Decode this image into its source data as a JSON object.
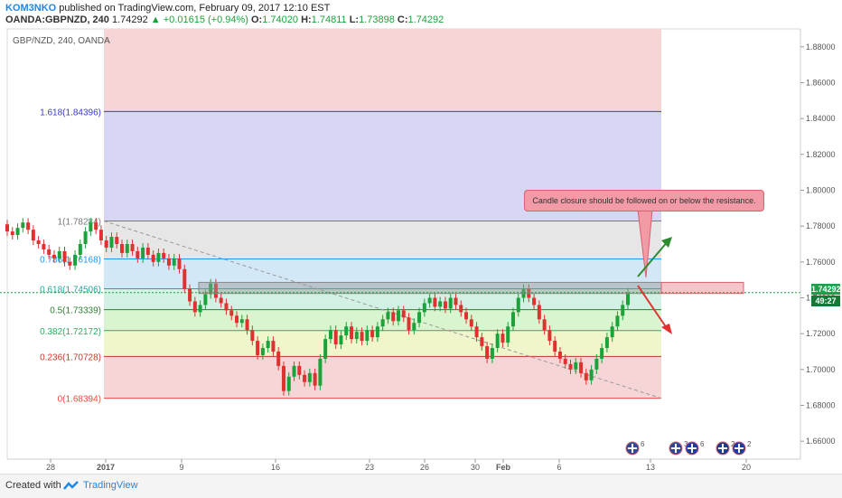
{
  "header": {
    "author": "KOM3NKO",
    "published": "published on TradingView.com, February 09, 2017 12:10 EST",
    "symbol": "OANDA:GBPNZD, 240",
    "last": "1.74292",
    "change_arrow": "▲",
    "change": "+0.01615 (+0.94%)",
    "o_label": "O:",
    "o_val": "1.74020",
    "h_label": "H:",
    "h_val": "1.74811",
    "l_label": "L:",
    "l_val": "1.73898",
    "c_label": "C:",
    "c_val": "1.74292"
  },
  "footer": {
    "created_with": "Created with",
    "brand": "TradingView"
  },
  "annotation": "Candle closure should be followed on or below the resistance.",
  "price_badge": {
    "price": "1.74292",
    "countdown": "49:27"
  },
  "colors": {
    "up": "#1ba23a",
    "down": "#e03131",
    "accent": "#1e88e5",
    "fib_0": "#e74c3c",
    "fib_0236": "#c0392b",
    "fib_0382": "#27ae60",
    "fib_05": "#2e7d32",
    "fib_0618": "#26a69a",
    "fib_0786": "#2196f3",
    "fib_1": "#777777",
    "fib_1618": "#3b3bc7"
  },
  "icons": [
    "tradingview-logo-icon",
    "uk-flag-icon",
    "eu-flag-icon",
    "au-flag-icon"
  ],
  "events": [
    {
      "count": "6",
      "flag": "uk-flag-icon"
    },
    {
      "count": "3",
      "flag": "uk-flag-icon"
    },
    {
      "count": "6",
      "flag": "eu-flag-icon"
    },
    {
      "count": "2",
      "flag": "au-flag-icon"
    },
    {
      "count": "2",
      "flag": "eu-flag-icon"
    }
  ],
  "chart_data": {
    "type": "line",
    "title": "GBP/NZD, 240, OANDA",
    "xlabel": "",
    "ylabel": "",
    "ylim": [
      1.65,
      1.89
    ],
    "y_ticks": [
      "1.66000",
      "1.68000",
      "1.70000",
      "1.72000",
      "1.74000",
      "1.76000",
      "1.78000",
      "1.80000",
      "1.82000",
      "1.84000",
      "1.86000",
      "1.88000"
    ],
    "x_ticks": [
      "28",
      "2017",
      "9",
      "16",
      "23",
      "26",
      "30",
      "Feb",
      "6",
      "13",
      "20"
    ],
    "fib_levels": [
      {
        "label": "1.618(1.84396)",
        "value": 1.84396
      },
      {
        "label": "1(1.78284)",
        "value": 1.78284
      },
      {
        "label": "0.786(1.76168)",
        "value": 1.76168
      },
      {
        "label": "0.618(1.74506)",
        "value": 1.74506
      },
      {
        "label": "0.5(1.73339)",
        "value": 1.73339
      },
      {
        "label": "0.382(1.72172)",
        "value": 1.72172
      },
      {
        "label": "0.236(1.70728)",
        "value": 1.70728
      },
      {
        "label": "0(1.68394)",
        "value": 1.68394
      }
    ],
    "resistance_zone": [
      1.74292,
      1.74811
    ],
    "last_price": 1.74292,
    "price_path": [
      [
        1.781,
        1.777
      ],
      [
        1.777,
        1.775
      ],
      [
        1.775,
        1.779
      ],
      [
        1.779,
        1.782
      ],
      [
        1.782,
        1.778
      ],
      [
        1.778,
        1.772
      ],
      [
        1.772,
        1.77
      ],
      [
        1.77,
        1.767
      ],
      [
        1.767,
        1.764
      ],
      [
        1.764,
        1.762
      ],
      [
        1.762,
        1.766
      ],
      [
        1.766,
        1.76
      ],
      [
        1.76,
        1.758
      ],
      [
        1.758,
        1.764
      ],
      [
        1.764,
        1.77
      ],
      [
        1.77,
        1.777
      ],
      [
        1.777,
        1.782
      ],
      [
        1.782,
        1.778
      ],
      [
        1.778,
        1.772
      ],
      [
        1.772,
        1.768
      ],
      [
        1.768,
        1.774
      ],
      [
        1.774,
        1.77
      ],
      [
        1.77,
        1.765
      ],
      [
        1.765,
        1.77
      ],
      [
        1.77,
        1.766
      ],
      [
        1.766,
        1.762
      ],
      [
        1.762,
        1.768
      ],
      [
        1.768,
        1.764
      ],
      [
        1.764,
        1.76
      ],
      [
        1.76,
        1.765
      ],
      [
        1.765,
        1.762
      ],
      [
        1.762,
        1.758
      ],
      [
        1.758,
        1.762
      ],
      [
        1.762,
        1.756
      ],
      [
        1.756,
        1.745
      ],
      [
        1.745,
        1.738
      ],
      [
        1.738,
        1.732
      ],
      [
        1.732,
        1.736
      ],
      [
        1.736,
        1.742
      ],
      [
        1.742,
        1.748
      ],
      [
        1.748,
        1.74
      ],
      [
        1.74,
        1.737
      ],
      [
        1.737,
        1.733
      ],
      [
        1.733,
        1.73
      ],
      [
        1.73,
        1.726
      ],
      [
        1.726,
        1.728
      ],
      [
        1.728,
        1.722
      ],
      [
        1.722,
        1.716
      ],
      [
        1.716,
        1.708
      ],
      [
        1.708,
        1.712
      ],
      [
        1.712,
        1.716
      ],
      [
        1.716,
        1.71
      ],
      [
        1.71,
        1.702
      ],
      [
        1.702,
        1.688
      ],
      [
        1.688,
        1.696
      ],
      [
        1.696,
        1.702
      ],
      [
        1.702,
        1.697
      ],
      [
        1.697,
        1.693
      ],
      [
        1.693,
        1.698
      ],
      [
        1.698,
        1.691
      ],
      [
        1.691,
        1.706
      ],
      [
        1.706,
        1.717
      ],
      [
        1.717,
        1.722
      ],
      [
        1.722,
        1.714
      ],
      [
        1.714,
        1.719
      ],
      [
        1.719,
        1.724
      ],
      [
        1.724,
        1.717
      ],
      [
        1.717,
        1.721
      ],
      [
        1.721,
        1.716
      ],
      [
        1.716,
        1.722
      ],
      [
        1.722,
        1.718
      ],
      [
        1.718,
        1.724
      ],
      [
        1.724,
        1.728
      ],
      [
        1.728,
        1.732
      ],
      [
        1.732,
        1.727
      ],
      [
        1.727,
        1.733
      ],
      [
        1.733,
        1.729
      ],
      [
        1.729,
        1.722
      ],
      [
        1.722,
        1.726
      ],
      [
        1.726,
        1.732
      ],
      [
        1.732,
        1.737
      ],
      [
        1.737,
        1.74
      ],
      [
        1.74,
        1.735
      ],
      [
        1.735,
        1.738
      ],
      [
        1.738,
        1.734
      ],
      [
        1.734,
        1.74
      ],
      [
        1.74,
        1.736
      ],
      [
        1.736,
        1.732
      ],
      [
        1.732,
        1.728
      ],
      [
        1.728,
        1.724
      ],
      [
        1.724,
        1.718
      ],
      [
        1.718,
        1.713
      ],
      [
        1.713,
        1.706
      ],
      [
        1.706,
        1.712
      ],
      [
        1.712,
        1.72
      ],
      [
        1.72,
        1.715
      ],
      [
        1.715,
        1.724
      ],
      [
        1.724,
        1.732
      ],
      [
        1.732,
        1.74
      ],
      [
        1.74,
        1.745
      ],
      [
        1.745,
        1.74
      ],
      [
        1.74,
        1.736
      ],
      [
        1.736,
        1.728
      ],
      [
        1.728,
        1.722
      ],
      [
        1.722,
        1.716
      ],
      [
        1.716,
        1.71
      ],
      [
        1.71,
        1.706
      ],
      [
        1.706,
        1.703
      ],
      [
        1.703,
        1.7
      ],
      [
        1.7,
        1.704
      ],
      [
        1.704,
        1.698
      ],
      [
        1.698,
        1.694
      ],
      [
        1.694,
        1.7
      ],
      [
        1.7,
        1.706
      ],
      [
        1.706,
        1.712
      ],
      [
        1.712,
        1.718
      ],
      [
        1.718,
        1.724
      ],
      [
        1.724,
        1.73
      ],
      [
        1.73,
        1.736
      ],
      [
        1.736,
        1.743
      ]
    ]
  }
}
